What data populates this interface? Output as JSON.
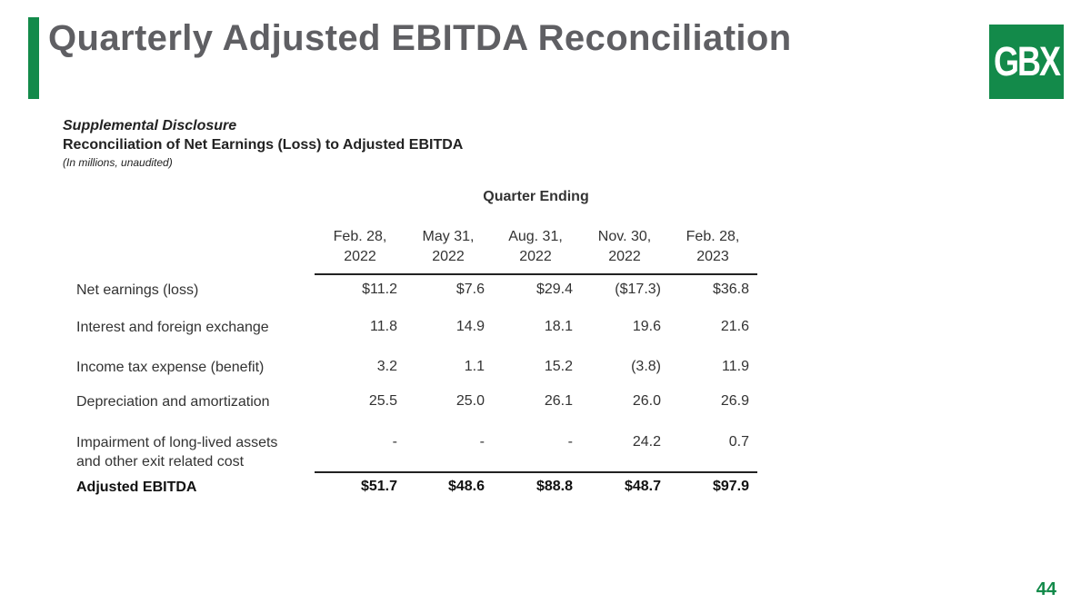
{
  "title": "Quarterly Adjusted EBITDA Reconciliation",
  "logo_text": "GBX",
  "colors": {
    "accent": "#138a4a",
    "title": "#5f5f63"
  },
  "supplemental": {
    "heading": "Supplemental Disclosure",
    "subheading": "Reconciliation of Net Earnings (Loss) to Adjusted EBITDA",
    "note": "(In millions, unaudited)"
  },
  "table": {
    "group_header": "Quarter Ending",
    "columns": [
      {
        "line1": "Feb. 28,",
        "line2": "2022"
      },
      {
        "line1": "May 31,",
        "line2": "2022"
      },
      {
        "line1": "Aug. 31,",
        "line2": "2022"
      },
      {
        "line1": "Nov. 30,",
        "line2": "2022"
      },
      {
        "line1": "Feb. 28,",
        "line2": "2023"
      }
    ],
    "rows": [
      {
        "label1": "Net earnings (loss)",
        "label2": "",
        "values": [
          "$11.2",
          "$7.6",
          "$29.4",
          "($17.3)",
          "$36.8"
        ]
      },
      {
        "label1": "Interest and foreign exchange",
        "label2": "",
        "values": [
          "11.8",
          "14.9",
          "18.1",
          "19.6",
          "21.6"
        ]
      },
      {
        "label1": "Income tax expense (benefit)",
        "label2": "",
        "values": [
          "3.2",
          "1.1",
          "15.2",
          "(3.8)",
          "11.9"
        ]
      },
      {
        "label1": "Depreciation and amortization",
        "label2": "",
        "values": [
          "25.5",
          "25.0",
          "26.1",
          "26.0",
          "26.9"
        ]
      },
      {
        "label1": "Impairment of long-lived assets",
        "label2": "and other exit related cost",
        "values": [
          "-",
          "-",
          "-",
          "24.2",
          "0.7"
        ]
      }
    ],
    "total": {
      "label": "Adjusted EBITDA",
      "values": [
        "$51.7",
        "$48.6",
        "$88.8",
        "$48.7",
        "$97.9"
      ]
    }
  },
  "page_number": "44"
}
